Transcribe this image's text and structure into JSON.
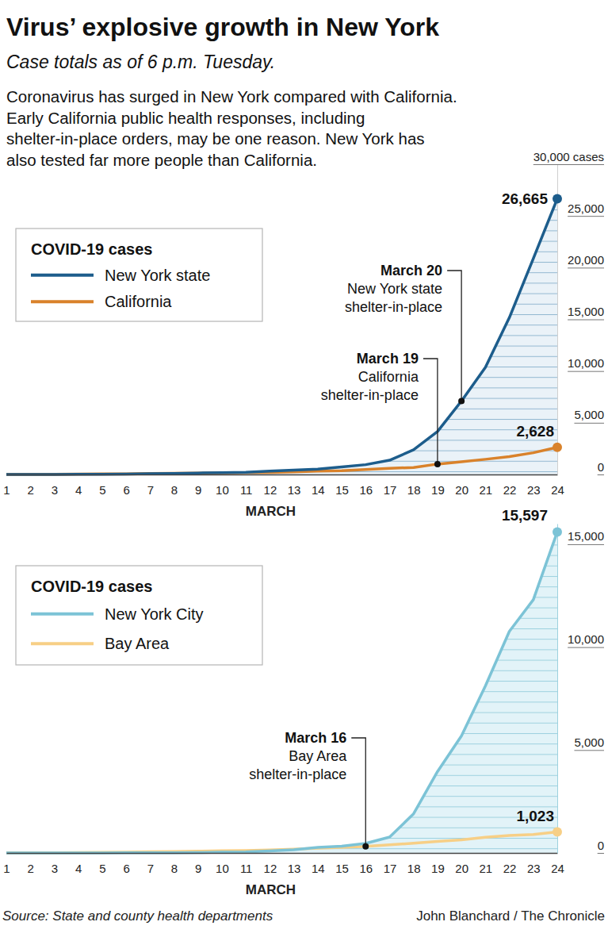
{
  "header": {
    "title": "Virus’ explosive growth in New York",
    "subtitle": "Case totals as of 6 p.m. Tuesday.",
    "description": [
      "Coronavirus has surged in New York compared with California.",
      "Early California public health responses, including",
      "shelter-in-place orders, may be one reason. New York has",
      "also tested far more people than California."
    ]
  },
  "chart_data": [
    {
      "type": "line",
      "x": [
        1,
        2,
        3,
        4,
        5,
        6,
        7,
        8,
        9,
        10,
        11,
        12,
        13,
        14,
        15,
        16,
        17,
        18,
        19,
        20,
        21,
        22,
        23,
        24
      ],
      "xlim": [
        1,
        24
      ],
      "xticks": [
        1,
        2,
        3,
        4,
        5,
        6,
        7,
        8,
        9,
        10,
        11,
        12,
        13,
        14,
        15,
        16,
        17,
        18,
        19,
        20,
        21,
        22,
        23,
        24
      ],
      "xlabel": "MARCH",
      "ylim": [
        0,
        30000
      ],
      "yticks": [
        0,
        {
          "value": 5000,
          "label": "5,000"
        },
        {
          "value": 10000,
          "label": "10,000"
        },
        {
          "value": 15000,
          "label": "15,000"
        },
        {
          "value": 20000,
          "label": "20,000"
        },
        {
          "value": 25000,
          "label": "25,000"
        },
        {
          "value": 30000,
          "label": "30,000 cases"
        }
      ],
      "grid": false,
      "legend": "top-left",
      "legend_title": "COVID-19 cases",
      "data_labels": true,
      "series": [
        {
          "name": "New York state",
          "type": "area",
          "color": "#1d5d8c",
          "values": [
            1,
            1,
            2,
            11,
            22,
            33,
            76,
            105,
            142,
            173,
            216,
            325,
            421,
            524,
            729,
            950,
            1374,
            2382,
            4152,
            7102,
            10356,
            15168,
            20875,
            26665
          ],
          "value_labels": [
            null,
            null,
            null,
            null,
            null,
            null,
            null,
            null,
            null,
            null,
            null,
            null,
            null,
            null,
            null,
            null,
            null,
            null,
            null,
            null,
            null,
            null,
            null,
            "26,665"
          ]
        },
        {
          "name": "California",
          "type": "line",
          "color": "#d9822b",
          "values": [
            12,
            21,
            25,
            35,
            53,
            60,
            88,
            114,
            133,
            157,
            177,
            198,
            247,
            335,
            372,
            472,
            598,
            675,
            1006,
            1224,
            1468,
            1733,
            2102,
            2628
          ],
          "value_labels": [
            null,
            null,
            null,
            null,
            null,
            null,
            null,
            null,
            null,
            null,
            null,
            null,
            null,
            null,
            null,
            null,
            null,
            null,
            null,
            null,
            null,
            null,
            null,
            "2,628"
          ]
        }
      ],
      "annotations": [
        {
          "x": 20,
          "series": "New York state",
          "lines": [
            "March 20",
            "New York state",
            "shelter-in-place"
          ]
        },
        {
          "x": 19,
          "series": "California",
          "lines": [
            "March 19",
            "California",
            "shelter-in-place"
          ]
        }
      ]
    },
    {
      "type": "line",
      "x": [
        1,
        2,
        3,
        4,
        5,
        6,
        7,
        8,
        9,
        10,
        11,
        12,
        13,
        14,
        15,
        16,
        17,
        18,
        19,
        20,
        21,
        22,
        23,
        24
      ],
      "xlim": [
        1,
        24
      ],
      "xticks": [
        1,
        2,
        3,
        4,
        5,
        6,
        7,
        8,
        9,
        10,
        11,
        12,
        13,
        14,
        15,
        16,
        17,
        18,
        19,
        20,
        21,
        22,
        23,
        24
      ],
      "xlabel": "MARCH",
      "ylim": [
        0,
        16000
      ],
      "yticks": [
        0,
        {
          "value": 5000,
          "label": "5,000"
        },
        {
          "value": 10000,
          "label": "10,000"
        },
        {
          "value": 15000,
          "label": "15,000"
        }
      ],
      "grid": false,
      "legend": "top-left",
      "legend_title": "COVID-19 cases",
      "data_labels": true,
      "series": [
        {
          "name": "New York City",
          "type": "area",
          "color": "#7cc3d6",
          "values": [
            0,
            1,
            1,
            1,
            4,
            5,
            11,
            12,
            19,
            36,
            52,
            95,
            154,
            269,
            329,
            463,
            770,
            1900,
            3954,
            5683,
            8115,
            10764,
            12305,
            15597
          ],
          "value_labels": [
            null,
            null,
            null,
            null,
            null,
            null,
            null,
            null,
            null,
            null,
            null,
            null,
            null,
            null,
            null,
            null,
            null,
            null,
            null,
            null,
            null,
            null,
            null,
            "15,597"
          ]
        },
        {
          "name": "Bay Area",
          "type": "line",
          "color": "#f7cf86",
          "values": [
            9,
            12,
            14,
            18,
            26,
            40,
            57,
            70,
            86,
            104,
            120,
            148,
            180,
            228,
            273,
            322,
            395,
            470,
            560,
            640,
            757,
            850,
            900,
            1023
          ],
          "value_labels": [
            null,
            null,
            null,
            null,
            null,
            null,
            null,
            null,
            null,
            null,
            null,
            null,
            null,
            null,
            null,
            null,
            null,
            null,
            null,
            null,
            null,
            null,
            null,
            "1,023"
          ]
        }
      ],
      "annotations": [
        {
          "x": 16,
          "series": "Bay Area",
          "lines": [
            "March 16",
            "Bay Area",
            "shelter-in-place"
          ]
        }
      ]
    }
  ],
  "footer": {
    "source": "Source: State and county health departments",
    "credit": "John Blanchard / The Chronicle"
  }
}
